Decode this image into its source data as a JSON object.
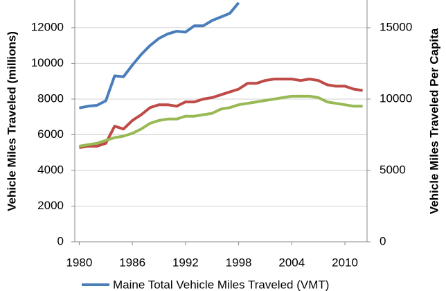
{
  "chart_data": {
    "type": "line",
    "y_label": "Vehicle Miles Traveled (millions)",
    "y2_label": "Vehicle Miles Traveled Per Capita",
    "x": [
      1980,
      1981,
      1982,
      1983,
      1984,
      1985,
      1986,
      1987,
      1988,
      1989,
      1990,
      1991,
      1992,
      1993,
      1994,
      1995,
      1996,
      1997,
      1998,
      1999,
      2000,
      2001,
      2002,
      2003,
      2004,
      2005,
      2006,
      2007,
      2008,
      2009,
      2010,
      2011,
      2012
    ],
    "xlim": [
      1979.5,
      2012.5
    ],
    "xticks": [
      1980,
      1986,
      1992,
      1998,
      2004,
      2010
    ],
    "ylim": [
      0,
      13550
    ],
    "yticks": [
      0,
      2000,
      4000,
      6000,
      8000,
      10000,
      12000
    ],
    "y2lim": [
      0,
      16940
    ],
    "y2ticks": [
      0,
      5000,
      10000,
      15000
    ],
    "grid": true,
    "legend": "bottom",
    "series": [
      {
        "name": "Maine Total Vehicle Miles Traveled (VMT)",
        "color": "#4a7ebb",
        "values": [
          7500,
          7600,
          7650,
          7900,
          9300,
          9250,
          9900,
          10500,
          11000,
          11400,
          11650,
          11800,
          11750,
          12100,
          12100,
          12400,
          12600,
          12800,
          13400,
          null,
          null,
          null,
          null,
          null,
          null,
          null,
          null,
          null,
          null,
          null,
          null,
          null,
          null
        ]
      },
      {
        "color": "#be4b48",
        "axis": "y2",
        "values": [
          6600,
          6700,
          6700,
          6900,
          8100,
          7900,
          8500,
          8900,
          9400,
          9600,
          9600,
          9500,
          9800,
          9800,
          10000,
          10100,
          10300,
          10500,
          10700,
          11100,
          11100,
          11300,
          11400,
          11400,
          11400,
          11300,
          11400,
          11300,
          11000,
          10900,
          10900,
          10700,
          10600
        ]
      },
      {
        "color": "#98b954",
        "axis": "y2",
        "values": [
          6700,
          6800,
          6900,
          7100,
          7300,
          7400,
          7600,
          7900,
          8300,
          8500,
          8600,
          8600,
          8800,
          8800,
          8900,
          9000,
          9300,
          9400,
          9600,
          9700,
          9800,
          9900,
          10000,
          10100,
          10200,
          10200,
          10200,
          10100,
          9800,
          9700,
          9600,
          9500,
          9500
        ]
      }
    ]
  }
}
